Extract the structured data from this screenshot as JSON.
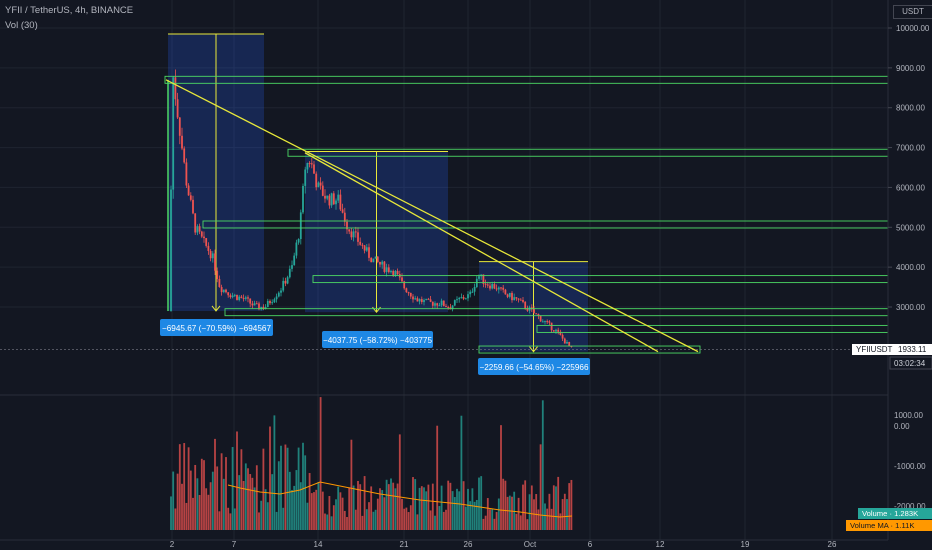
{
  "header": {
    "title": "YFII / TetherUS, 4h, BINANCE",
    "indicator": "Vol (30)"
  },
  "axis_unit": "USDT",
  "chart_data": {
    "type": "candlestick",
    "symbol": "YFIIUSDT",
    "price_axis": {
      "ticks": [
        "10000.00",
        "9000.00",
        "8000.00",
        "7000.00",
        "6000.00",
        "5000.00",
        "4000.00",
        "3000.00"
      ],
      "range": [
        1500,
        10300
      ]
    },
    "volume_axis": {
      "ticks": [
        "1000.00",
        "0.00",
        "-1000.00",
        "-2000.00"
      ]
    },
    "x_ticks": [
      "2",
      "7",
      "14",
      "21",
      "26",
      "Oct",
      "6",
      "12",
      "19",
      "26"
    ],
    "last_price": {
      "symbol": "YFIIUSDT",
      "value": "1933.11",
      "countdown": "03:02:34"
    },
    "volume_badge": "Volume · 1.283K",
    "volume_ma_badge": "Volume MA · 1.11K",
    "measurements": [
      {
        "label": "−6945.67 (−70.59%) −694567",
        "from_price": 9850,
        "to_price": 2900
      },
      {
        "label": "−4037.75 (−58.72%) −403775",
        "from_price": 6900,
        "to_price": 2870
      },
      {
        "label": "−2259.66 (−54.65%) −225966",
        "from_price": 4140,
        "to_price": 1880
      }
    ],
    "support_resistance_levels": [
      8700,
      6870,
      5070,
      3700,
      2870,
      2450,
      1933
    ],
    "downtrend_lines": [
      {
        "from": 8700,
        "to": 1880
      },
      {
        "from": 6870,
        "to": 1880
      }
    ],
    "colors": {
      "up": "#26a69a",
      "down": "#ef5350",
      "levels": "#4cd964",
      "trend": "#e8e83a",
      "box": "#2962ff",
      "badge": "#1e88e5",
      "volume_ma": "#ff9800"
    }
  }
}
